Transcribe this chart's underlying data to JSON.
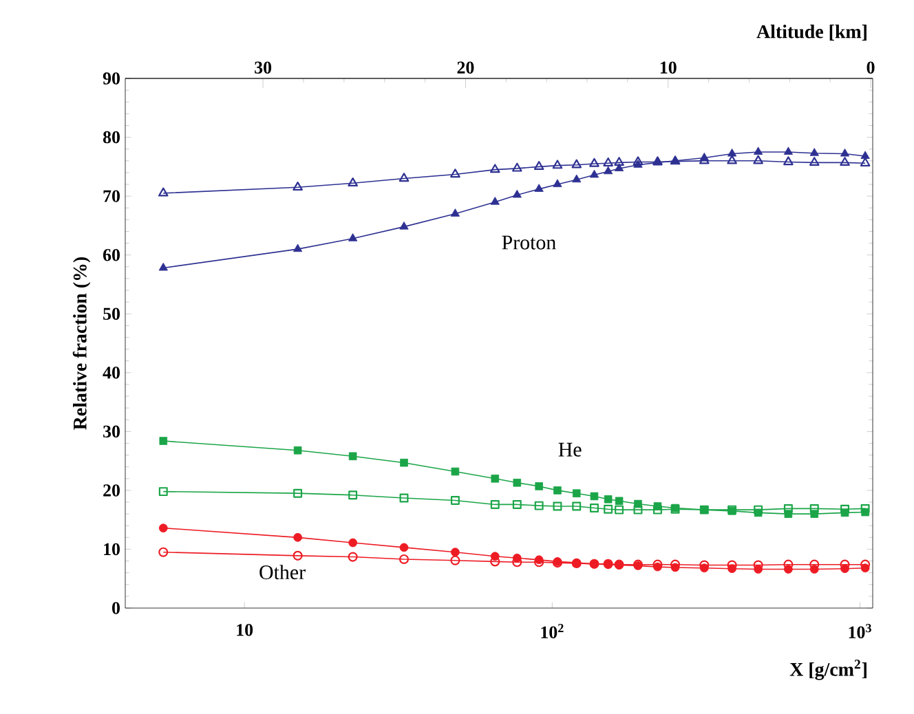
{
  "chart_data": {
    "type": "line",
    "xlabel": "X [g/cm$^{2}$]",
    "ylabel": "Relative fraction (%)",
    "x2label": "Altitude [km]",
    "log": "x",
    "xlim": [
      4.1,
      1100
    ],
    "ylim": [
      0,
      90
    ],
    "xticks": [
      10,
      {
        "value": 100,
        "label": "10$^{2}$"
      },
      {
        "value": 1000,
        "label": "10$^{3}$"
      }
    ],
    "yticks": [
      0,
      10,
      20,
      30,
      40,
      50,
      60,
      70,
      80,
      90
    ],
    "x2lim": [
      36.8,
      -0.1
    ],
    "x2ticks": [
      30,
      20,
      10,
      0
    ],
    "x": [
      5.45,
      14.9,
      22.5,
      33.0,
      48.4,
      65.2,
      76.9,
      90.6,
      104,
      120,
      137,
      152,
      165,
      190,
      220,
      251,
      312,
      384,
      467,
      585,
      711,
      893,
      1040
    ],
    "series": [
      {
        "color": "#2e3192",
        "marker": "triangle",
        "values": [
          57.8,
          61.0,
          62.8,
          64.8,
          67.0,
          69.0,
          70.2,
          71.2,
          72.0,
          72.8,
          73.6,
          74.2,
          74.7,
          75.3,
          75.7,
          76.0,
          76.5,
          77.2,
          77.5,
          77.5,
          77.3,
          77.2,
          76.8
        ]
      },
      {
        "color": "#2e3192",
        "marker": "triangle",
        "values": [
          70.5,
          71.5,
          72.2,
          73.0,
          73.7,
          74.5,
          74.7,
          75.0,
          75.2,
          75.3,
          75.5,
          75.6,
          75.7,
          75.8,
          75.8,
          75.9,
          76.0,
          76.0,
          76.0,
          75.8,
          75.7,
          75.7,
          75.6
        ]
      },
      {
        "color": "#1ba548",
        "marker": "square",
        "values": [
          28.4,
          26.8,
          25.8,
          24.7,
          23.2,
          22.0,
          21.3,
          20.7,
          20.0,
          19.5,
          19.0,
          18.5,
          18.2,
          17.7,
          17.3,
          17.0,
          16.7,
          16.5,
          16.2,
          16.0,
          16.0,
          16.2,
          16.3
        ]
      },
      {
        "color": "#1ba548",
        "marker": "square",
        "values": [
          19.8,
          19.5,
          19.2,
          18.7,
          18.3,
          17.6,
          17.6,
          17.4,
          17.3,
          17.3,
          17.0,
          16.8,
          16.7,
          16.7,
          16.7,
          16.8,
          16.7,
          16.7,
          16.7,
          16.9,
          16.9,
          16.8,
          16.9
        ]
      },
      {
        "color": "#ed1c24",
        "marker": "circle",
        "values": [
          13.6,
          12.0,
          11.1,
          10.3,
          9.5,
          8.8,
          8.5,
          8.2,
          7.9,
          7.7,
          7.5,
          7.4,
          7.3,
          7.2,
          7.0,
          6.9,
          6.8,
          6.7,
          6.6,
          6.6,
          6.6,
          6.7,
          6.8
        ]
      },
      {
        "color": "#ed1c24",
        "marker": "circle",
        "values": [
          9.5,
          8.9,
          8.7,
          8.3,
          8.1,
          7.9,
          7.8,
          7.8,
          7.7,
          7.6,
          7.5,
          7.5,
          7.4,
          7.4,
          7.4,
          7.4,
          7.3,
          7.3,
          7.3,
          7.4,
          7.4,
          7.4,
          7.4
        ]
      }
    ],
    "annotations": [
      "Proton",
      "He",
      "Other"
    ]
  }
}
